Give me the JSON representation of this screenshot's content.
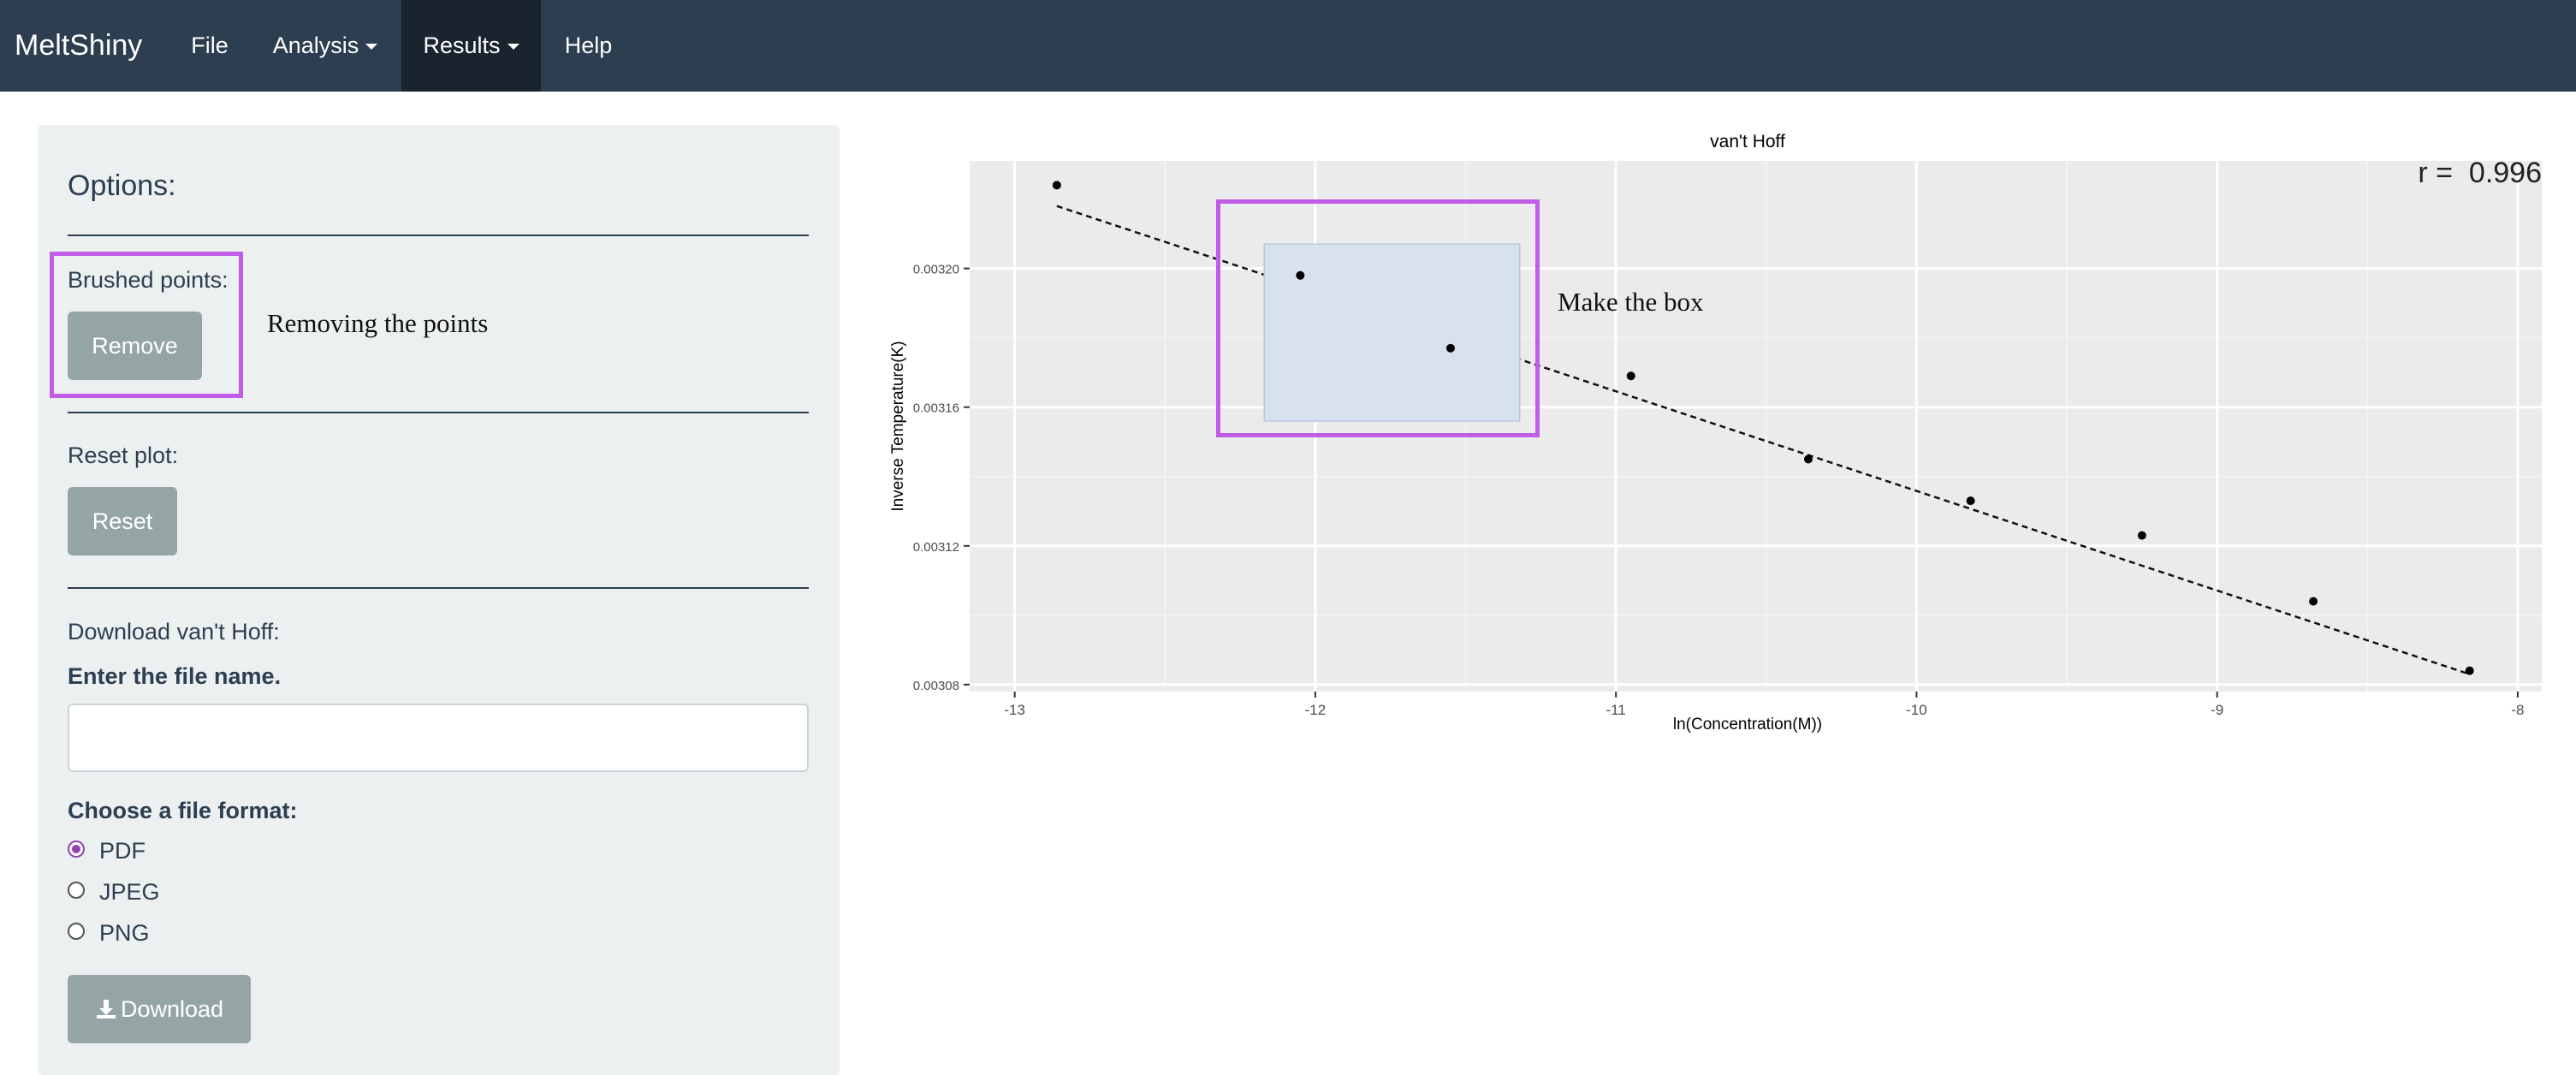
{
  "navbar": {
    "brand": "MeltShiny",
    "items": [
      {
        "label": "File"
      },
      {
        "label": "Analysis"
      },
      {
        "label": "Results"
      },
      {
        "label": "Help"
      }
    ]
  },
  "sidebar": {
    "title": "Options:",
    "brushed_label": "Brushed points:",
    "remove_button": "Remove",
    "remove_annotation": "Removing the points",
    "reset_label": "Reset plot:",
    "reset_button": "Reset",
    "download_label": "Download van't Hoff:",
    "filename_label": "Enter the file name.",
    "filename_value": "",
    "format_label": "Choose a file format:",
    "formats": [
      {
        "label": "PDF",
        "checked": true
      },
      {
        "label": "JPEG",
        "checked": false
      },
      {
        "label": "PNG",
        "checked": false
      }
    ],
    "download_button": "Download"
  },
  "plot": {
    "box_annotation": "Make the box",
    "r_label": "r =  0.996"
  },
  "colors": {
    "navbar": "#2c3e50",
    "navbar_active": "#1a242f",
    "sidebar": "#ecf0f1",
    "button": "#95a5a6",
    "highlight": "#c05ce6",
    "radio_checked": "#8e44ad",
    "panel": "#ebebeb",
    "brush_fill": "#d8e2ef"
  },
  "chart_data": {
    "type": "scatter",
    "title": "van't Hoff",
    "xlabel": "ln(Concentration(M))",
    "ylabel": "Inverse Temperature(K)",
    "xlim": [
      -13.15,
      -7.92
    ],
    "ylim": [
      0.003078,
      0.003231
    ],
    "x_ticks": [
      -13,
      -12,
      -11,
      -10,
      -9,
      -8
    ],
    "y_ticks": [
      0.00308,
      0.00312,
      0.00316,
      0.0032
    ],
    "y_tick_labels": [
      "0.00308",
      "0.00312",
      "0.00316",
      "0.00320"
    ],
    "points": [
      {
        "x": -12.86,
        "y": 0.003224
      },
      {
        "x": -12.05,
        "y": 0.003198
      },
      {
        "x": -11.55,
        "y": 0.003177
      },
      {
        "x": -10.95,
        "y": 0.003169
      },
      {
        "x": -10.36,
        "y": 0.003145
      },
      {
        "x": -9.82,
        "y": 0.003133
      },
      {
        "x": -9.25,
        "y": 0.003123
      },
      {
        "x": -8.68,
        "y": 0.003104
      },
      {
        "x": -8.16,
        "y": 0.003084
      }
    ],
    "fit_line": {
      "x1": -12.86,
      "y1": 0.003218,
      "x2": -8.16,
      "y2": 0.003083,
      "style": "dashed"
    },
    "brush": {
      "xmin": -12.17,
      "xmax": -11.32,
      "ymin": 0.003156,
      "ymax": 0.003207
    },
    "grid": true
  }
}
